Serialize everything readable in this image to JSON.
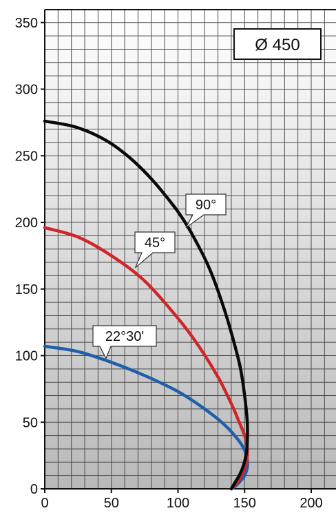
{
  "chart_data": {
    "type": "line",
    "title": "Ø 450",
    "xlabel": "",
    "ylabel": "",
    "xlim": [
      0,
      220
    ],
    "ylim": [
      0,
      360
    ],
    "grid": true,
    "x_ticks": [
      "0",
      "50",
      "100",
      "150",
      "200"
    ],
    "y_ticks": [
      "0",
      "50",
      "100",
      "150",
      "200",
      "250",
      "300",
      "350"
    ],
    "series": [
      {
        "name": "90°",
        "color": "#0a0a0a",
        "x": [
          0,
          25,
          50,
          75,
          100,
          115,
          125,
          135,
          142,
          147,
          150,
          152,
          152,
          151,
          149,
          146,
          143,
          140
        ],
        "y": [
          276,
          271,
          259,
          238,
          208,
          183,
          162,
          134,
          110,
          90,
          70,
          50,
          35,
          25,
          17,
          10,
          5,
          0
        ]
      },
      {
        "name": "45°",
        "color": "#d0262a",
        "x": [
          0,
          25,
          50,
          75,
          100,
          115,
          130,
          140,
          146,
          150,
          152,
          152,
          151,
          149,
          146,
          143,
          140
        ],
        "y": [
          196,
          189,
          175,
          156,
          128,
          108,
          84,
          64,
          50,
          40,
          31,
          24,
          18,
          13,
          7,
          3,
          0
        ]
      },
      {
        "name": "22°30'",
        "color": "#1f5faa",
        "x": [
          0,
          25,
          50,
          75,
          100,
          120,
          135,
          145,
          150,
          152,
          152,
          150,
          147,
          143,
          140
        ],
        "y": [
          107,
          103,
          95,
          85,
          73,
          60,
          48,
          37,
          29,
          22,
          16,
          10,
          6,
          2,
          0
        ]
      }
    ],
    "annotations": [
      {
        "text": "90°",
        "series": "90°"
      },
      {
        "text": "45°",
        "series": "45°"
      },
      {
        "text": "22°30'",
        "series": "22°30'"
      }
    ]
  }
}
